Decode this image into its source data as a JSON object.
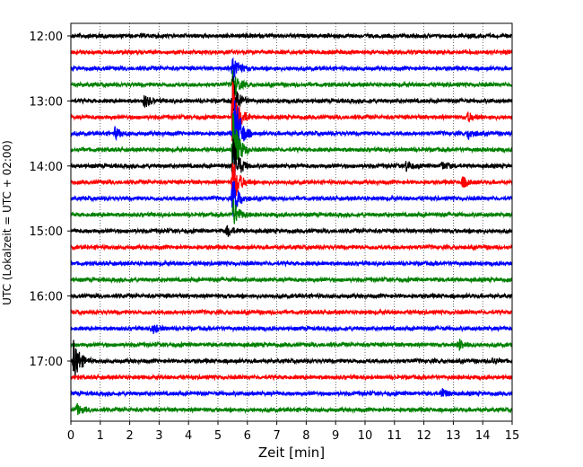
{
  "chart_data": {
    "type": "line",
    "subtype": "helicorder-seismogram",
    "xlabel": "Zeit  [min]",
    "ylabel": "UTC (Lokalzeit = UTC + 02:00)",
    "xlim": [
      0,
      15
    ],
    "x_ticks": [
      "0",
      "1",
      "2",
      "3",
      "4",
      "5",
      "6",
      "7",
      "8",
      "9",
      "10",
      "11",
      "12",
      "13",
      "14",
      "15"
    ],
    "y_ticks": [
      "12:00",
      "13:00",
      "14:00",
      "15:00",
      "16:00",
      "17:00"
    ],
    "grid": "vertical dotted at each minute",
    "trace_interval_min": 15,
    "colors": [
      "#000000",
      "#ff0000",
      "#0000ff",
      "#008000"
    ],
    "traces": [
      {
        "start": "12:00",
        "color": "#000000"
      },
      {
        "start": "12:15",
        "color": "#ff0000"
      },
      {
        "start": "12:30",
        "color": "#0000ff"
      },
      {
        "start": "12:45",
        "color": "#008000"
      },
      {
        "start": "13:00",
        "color": "#000000"
      },
      {
        "start": "13:15",
        "color": "#ff0000"
      },
      {
        "start": "13:30",
        "color": "#0000ff"
      },
      {
        "start": "13:45",
        "color": "#008000"
      },
      {
        "start": "14:00",
        "color": "#000000"
      },
      {
        "start": "14:15",
        "color": "#ff0000"
      },
      {
        "start": "14:30",
        "color": "#0000ff"
      },
      {
        "start": "14:45",
        "color": "#008000"
      },
      {
        "start": "15:00",
        "color": "#000000"
      },
      {
        "start": "15:15",
        "color": "#ff0000"
      },
      {
        "start": "15:30",
        "color": "#0000ff"
      },
      {
        "start": "15:45",
        "color": "#008000"
      },
      {
        "start": "16:00",
        "color": "#000000"
      },
      {
        "start": "16:15",
        "color": "#ff0000"
      },
      {
        "start": "16:30",
        "color": "#0000ff"
      },
      {
        "start": "16:45",
        "color": "#008000"
      },
      {
        "start": "17:00",
        "color": "#000000"
      },
      {
        "start": "17:15",
        "color": "#ff0000"
      },
      {
        "start": "17:30",
        "color": "#0000ff"
      },
      {
        "start": "17:45",
        "color": "#008000"
      }
    ],
    "events": [
      {
        "trace": 2,
        "t_min": 5.5,
        "amp": 0.3
      },
      {
        "trace": 3,
        "t_min": 5.5,
        "amp": 0.3
      },
      {
        "trace": 4,
        "t_min": 5.5,
        "amp": 0.45
      },
      {
        "trace": 5,
        "t_min": 5.5,
        "amp": 0.8
      },
      {
        "trace": 6,
        "t_min": 5.55,
        "amp": 1.0
      },
      {
        "trace": 7,
        "t_min": 5.5,
        "amp": 0.8
      },
      {
        "trace": 8,
        "t_min": 5.5,
        "amp": 0.6
      },
      {
        "trace": 9,
        "t_min": 5.5,
        "amp": 0.5
      },
      {
        "trace": 10,
        "t_min": 5.5,
        "amp": 0.4
      },
      {
        "trace": 11,
        "t_min": 5.5,
        "amp": 0.3
      },
      {
        "trace": 4,
        "t_min": 2.5,
        "amp": 0.12
      },
      {
        "trace": 6,
        "t_min": 1.5,
        "amp": 0.1
      },
      {
        "trace": 6,
        "t_min": 13.5,
        "amp": 0.1
      },
      {
        "trace": 5,
        "t_min": 13.5,
        "amp": 0.08
      },
      {
        "trace": 8,
        "t_min": 11.4,
        "amp": 0.1
      },
      {
        "trace": 8,
        "t_min": 12.6,
        "amp": 0.08
      },
      {
        "trace": 9,
        "t_min": 13.3,
        "amp": 0.1
      },
      {
        "trace": 12,
        "t_min": 5.3,
        "amp": 0.1
      },
      {
        "trace": 18,
        "t_min": 2.8,
        "amp": 0.08
      },
      {
        "trace": 19,
        "t_min": 13.2,
        "amp": 0.1
      },
      {
        "trace": 20,
        "t_min": 0.1,
        "amp": 0.5
      },
      {
        "trace": 20,
        "t_min": 14.3,
        "amp": 0.06
      },
      {
        "trace": 22,
        "t_min": 12.6,
        "amp": 0.1
      },
      {
        "trace": 23,
        "t_min": 0.2,
        "amp": 0.1
      }
    ]
  }
}
